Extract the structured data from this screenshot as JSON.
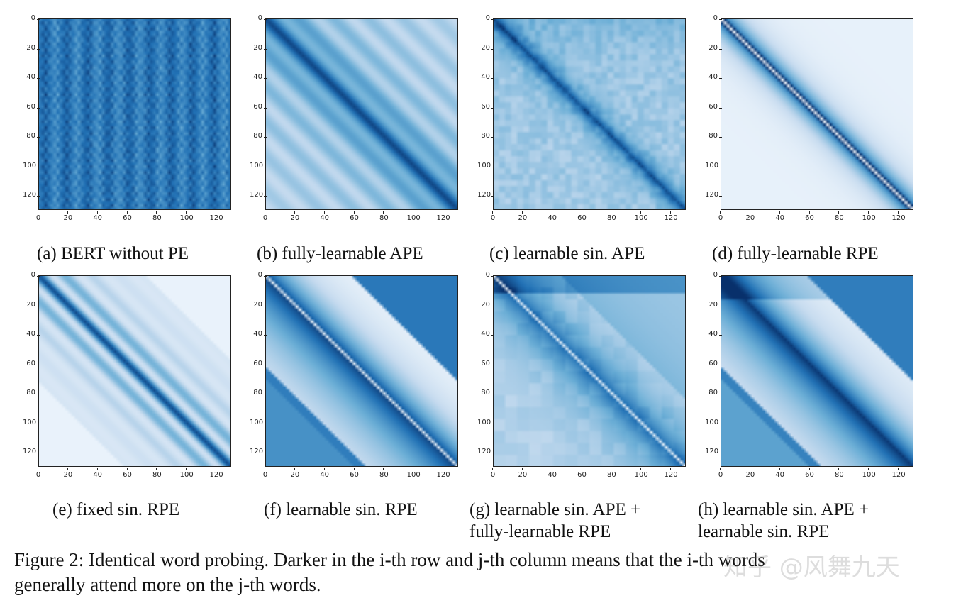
{
  "panels": [
    {
      "id": "a",
      "caption": "(a) BERT without PE",
      "pattern": "uniform"
    },
    {
      "id": "b",
      "caption": "(b) fully-learnable APE",
      "pattern": "stripes"
    },
    {
      "id": "c",
      "caption": "(c) learnable sin. APE",
      "pattern": "noisydiag"
    },
    {
      "id": "d",
      "caption": "(d) fully-learnable RPE",
      "pattern": "sharpdiag"
    },
    {
      "id": "e",
      "caption": "(e) fixed sin. RPE",
      "pattern": "sinstripes"
    },
    {
      "id": "f",
      "caption": "(f) learnable sin. RPE",
      "pattern": "bands"
    },
    {
      "id": "g",
      "caption": "(g) learnable sin. APE + fully-learnable RPE",
      "caption_lines": [
        "(g) learnable sin.  APE +",
        "fully-learnable RPE"
      ],
      "pattern": "mixed"
    },
    {
      "id": "h",
      "caption": "(h) learnable sin. APE + learnable sin. RPE",
      "caption_lines": [
        "(h) learnable sin.  APE +",
        "learnable sin. RPE"
      ],
      "pattern": "bands2"
    }
  ],
  "axis_ticks": {
    "y": [
      "0",
      "20",
      "40",
      "60",
      "80",
      "100",
      "120"
    ],
    "x": [
      "0",
      "20",
      "40",
      "60",
      "80",
      "100",
      "120"
    ]
  },
  "figure_caption": {
    "line1": "Figure 2: Identical word probing. Darker in the i-th row and j-th column means that the i-th words",
    "line2": "generally attend more on the j-th words."
  },
  "watermark": "知乎 @风舞九天",
  "colors": {
    "dark": "#08306b",
    "light": "#f7fbff"
  }
}
